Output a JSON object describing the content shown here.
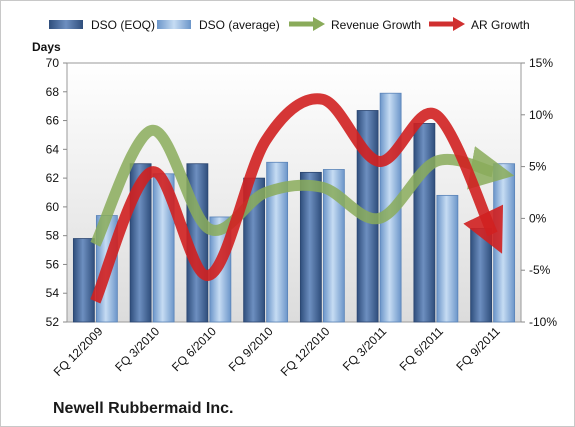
{
  "company_label": "Newell Rubbermaid Inc.",
  "legend": [
    {
      "name": "DSO (EOQ)",
      "kind": "bar",
      "color": "#4a6fa5"
    },
    {
      "name": "DSO (average)",
      "kind": "bar",
      "color": "#8fb6e3"
    },
    {
      "name": "Revenue Growth",
      "kind": "arrow",
      "color": "#8aab5a"
    },
    {
      "name": "AR Growth",
      "kind": "arrow",
      "color": "#d03030"
    }
  ],
  "chart_data": {
    "type": "bar+line",
    "title": "",
    "xlabel": "",
    "ylabel_left": "Days",
    "ylim_left": [
      52,
      70
    ],
    "yticks_left": [
      "52",
      "54",
      "56",
      "58",
      "60",
      "62",
      "64",
      "66",
      "68",
      "70"
    ],
    "ylim_right": [
      -10,
      15
    ],
    "yticks_right": [
      "-10%",
      "-5%",
      "0%",
      "5%",
      "10%",
      "15%"
    ],
    "grid": false,
    "legend_position": "top",
    "categories": [
      "FQ 12/2009",
      "FQ 3/2010",
      "FQ 6/2010",
      "FQ 9/2010",
      "FQ 12/2010",
      "FQ 3/2011",
      "FQ 6/2011",
      "FQ 9/2011"
    ],
    "series": [
      {
        "name": "DSO (EOQ)",
        "axis": "left",
        "type": "bar",
        "color": "#4a6fa5",
        "values": [
          57.8,
          63.0,
          63.0,
          62.0,
          62.4,
          66.7,
          65.8,
          58.5
        ]
      },
      {
        "name": "DSO (average)",
        "axis": "left",
        "type": "bar",
        "color": "#8fb6e3",
        "values": [
          59.4,
          62.3,
          59.3,
          63.1,
          62.6,
          67.9,
          60.8,
          63.0
        ]
      },
      {
        "name": "Revenue Growth",
        "axis": "right",
        "type": "line",
        "color": "#8aab5a",
        "values": [
          -2.5,
          8.5,
          -1.0,
          2.5,
          3.0,
          0.0,
          5.5,
          4.5
        ]
      },
      {
        "name": "AR Growth",
        "axis": "right",
        "type": "line",
        "color": "#d03030",
        "values": [
          -8.0,
          4.5,
          -5.5,
          7.5,
          11.5,
          5.5,
          10.0,
          -1.5
        ]
      }
    ]
  }
}
